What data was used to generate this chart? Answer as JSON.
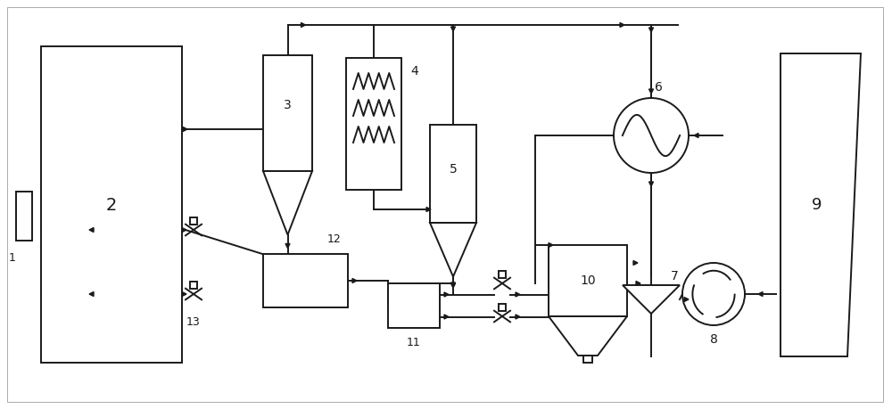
{
  "bg_color": "#ffffff",
  "line_color": "#1a1a1a",
  "lw": 1.4
}
